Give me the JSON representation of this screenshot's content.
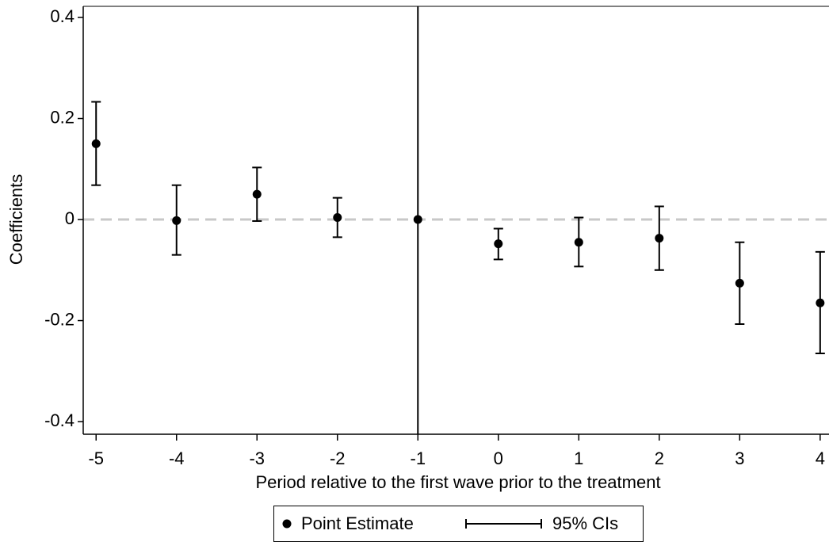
{
  "chart_data": {
    "type": "errorbar",
    "x_label": "Period relative to the first wave prior to the treatment",
    "y_label": "Coefficients",
    "x": [
      -5,
      -4,
      -3,
      -2,
      -1,
      0,
      1,
      2,
      3,
      4
    ],
    "series": [
      {
        "name": "Point Estimate",
        "color": "#000000",
        "values": [
          0.15,
          -0.002,
          0.05,
          0.004,
          0,
          -0.048,
          -0.045,
          -0.037,
          -0.126,
          -0.165
        ],
        "lower": [
          0.068,
          -0.07,
          -0.003,
          -0.035,
          null,
          -0.079,
          -0.093,
          -0.1,
          -0.207,
          -0.265
        ],
        "upper": [
          0.233,
          0.068,
          0.103,
          0.043,
          null,
          -0.018,
          0.004,
          0.026,
          -0.045,
          -0.064
        ]
      }
    ],
    "ci_name": "95% CIs",
    "xlim": [
      -5.16,
      4.11
    ],
    "ylim": [
      -0.425,
      0.422
    ],
    "xticks": [
      -5,
      -4,
      -3,
      -2,
      -1,
      0,
      1,
      2,
      3,
      4
    ],
    "yticks": [
      -0.4,
      -0.2,
      0,
      0.2,
      0.4
    ],
    "reference_lines": {
      "y": 0,
      "x": -1
    },
    "legend": "bottom"
  }
}
